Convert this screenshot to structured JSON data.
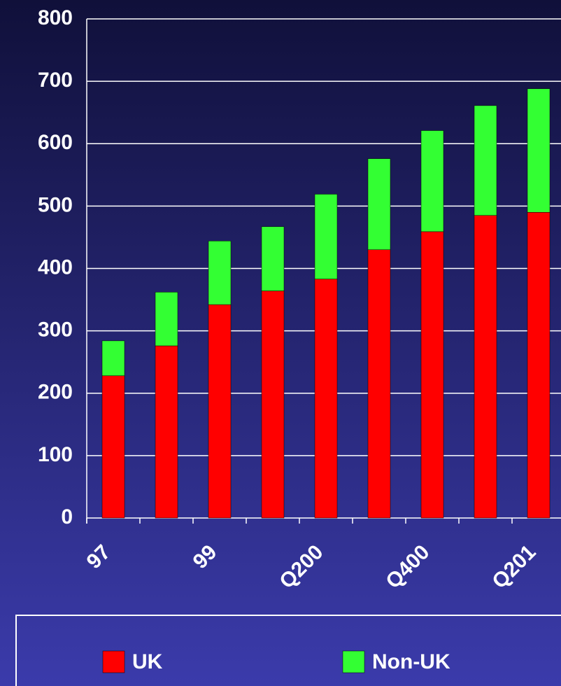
{
  "chart_data": {
    "type": "stacked_bar",
    "categories": [
      "97",
      null,
      "99",
      null,
      "Q200",
      null,
      "Q400",
      null,
      "Q201"
    ],
    "series": [
      {
        "name": "UK",
        "color": "#ff0000",
        "values": [
          228,
          276,
          342,
          364,
          383,
          430,
          459,
          485,
          490
        ]
      },
      {
        "name": "Non-UK",
        "color": "#33ff33",
        "values": [
          56,
          86,
          102,
          103,
          136,
          146,
          162,
          176,
          198
        ]
      }
    ],
    "ylim": [
      0,
      800
    ],
    "yticks": [
      0,
      100,
      200,
      300,
      400,
      500,
      600,
      700,
      800
    ],
    "grid": true,
    "legend": "bottom"
  }
}
